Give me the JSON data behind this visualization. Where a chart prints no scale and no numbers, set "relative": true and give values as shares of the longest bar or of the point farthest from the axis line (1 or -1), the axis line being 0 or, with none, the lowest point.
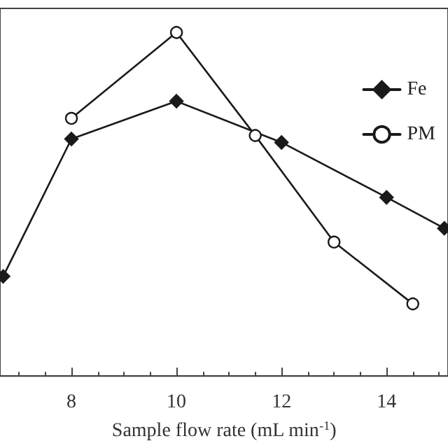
{
  "chart_data": {
    "type": "line",
    "xlabel": "Sample flow rate (mL min$^{-1}$)",
    "xlim": [
      6.64,
      15.17
    ],
    "xticks": [
      8,
      10,
      12,
      14
    ],
    "relative": true,
    "legend": "top right",
    "grid": false,
    "line_style": "solid",
    "series": [
      {
        "name": "Fe",
        "color": "#1a1a1a",
        "marker": "diamond",
        "x": [
          6.7,
          8,
          10,
          12,
          14,
          15.1
        ],
        "values": [
          0.29,
          0.69,
          0.8,
          0.68,
          0.52,
          0.43
        ]
      },
      {
        "name": "PM",
        "color": "#1a1a1a",
        "marker": "circle",
        "x": [
          8,
          10,
          11.5,
          13,
          14.5
        ],
        "values": [
          0.75,
          1,
          0.7,
          0.39,
          0.21
        ]
      }
    ]
  }
}
